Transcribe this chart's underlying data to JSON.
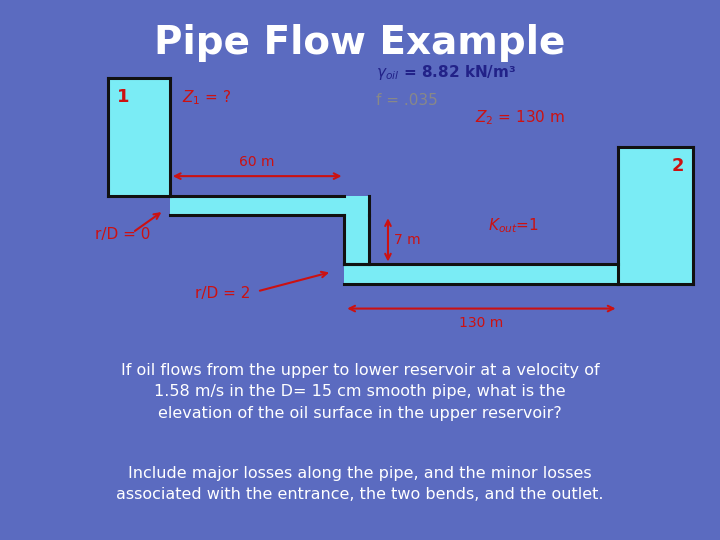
{
  "title": "Pipe Flow Example",
  "title_color": "#FFFFFF",
  "title_fontsize": 28,
  "bg_color": "#5B6BC0",
  "diagram_bg": "#FFFFFF",
  "water_color": "#7AECF5",
  "pipe_outline": "#111111",
  "label_color_red": "#CC1111",
  "label_color_dark_blue": "#222288",
  "label_color_gray": "#888888",
  "text_bottom_bg": "#1A3580",
  "text_bottom_color": "#FFFFFF",
  "gamma_text": "γ",
  "gamma_sub": "oil",
  "gamma_val": "= 8.82 kN/m",
  "f_text": "f = .035",
  "z1_text": "Z",
  "z1_sub": "1",
  "z1_val": " = ?",
  "z2_text": "Z",
  "z2_sub": "2",
  "z2_val": " = 130 m",
  "kout_text": "K",
  "kout_sub": "out",
  "kout_val": "=1",
  "sixty_m": "60 m",
  "seven_m": "7 m",
  "one_thirty_m": "130 m",
  "rD0": "r/D = 0",
  "rD2": "r/D = 2",
  "label1": "1",
  "label2": "2",
  "bottom_text_line1": "If oil flows from the upper to lower reservoir at a velocity of",
  "bottom_text_line2": "1.58 m/s in the D= 15 cm smooth pipe, what is the",
  "bottom_text_line3": "elevation of the oil surface in the upper reservoir?",
  "bottom_text_line4": "Include major losses along the pipe, and the minor losses",
  "bottom_text_line5": "associated with the entrance, the two bends, and the outlet."
}
